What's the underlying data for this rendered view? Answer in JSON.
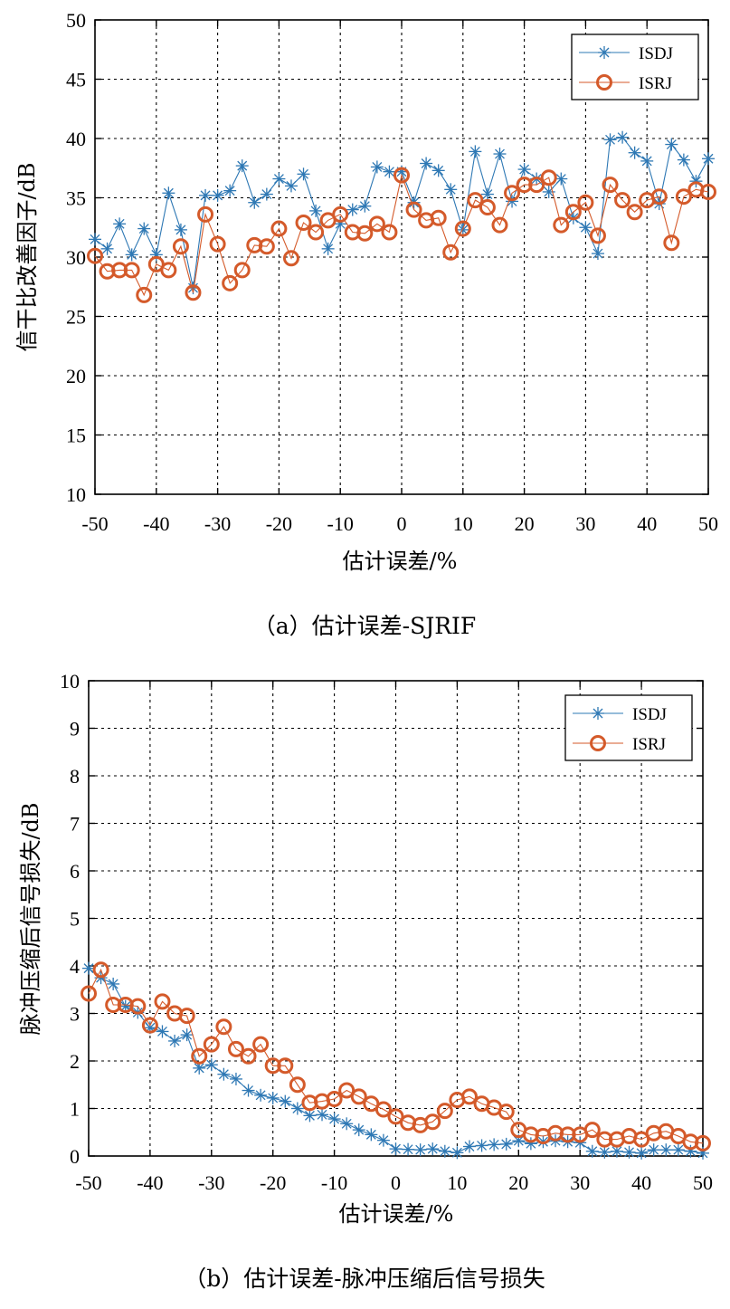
{
  "chart_data": [
    {
      "type": "line",
      "caption": "（a）估计误差-SJRIF",
      "xlabel": "估计误差/%",
      "ylabel": "信干比改善因子/dB",
      "xlim": [
        -50,
        50
      ],
      "ylim": [
        10,
        50
      ],
      "xticks": [
        -50,
        -40,
        -30,
        -20,
        -10,
        0,
        10,
        20,
        30,
        40,
        50
      ],
      "yticks": [
        10,
        15,
        20,
        25,
        30,
        35,
        40,
        45,
        50
      ],
      "grid": true,
      "legend_position": "top-right",
      "x": [
        -50,
        -48,
        -46,
        -44,
        -42,
        -40,
        -38,
        -36,
        -34,
        -32,
        -30,
        -28,
        -26,
        -24,
        -22,
        -20,
        -18,
        -16,
        -14,
        -12,
        -10,
        -8,
        -6,
        -4,
        -2,
        0,
        2,
        4,
        6,
        8,
        10,
        12,
        14,
        16,
        18,
        20,
        22,
        24,
        26,
        28,
        30,
        32,
        34,
        36,
        38,
        40,
        42,
        44,
        46,
        48,
        50
      ],
      "series": [
        {
          "name": "ISDJ",
          "color": "#2e78b4",
          "marker": "star",
          "values": [
            31.5,
            30.7,
            32.8,
            30.2,
            32.4,
            30.2,
            35.4,
            32.3,
            27.4,
            35.2,
            35.2,
            35.6,
            37.7,
            34.6,
            35.3,
            36.6,
            36.0,
            37.0,
            33.9,
            30.7,
            32.8,
            34.0,
            34.3,
            37.6,
            37.2,
            37.2,
            34.6,
            37.9,
            37.3,
            35.7,
            32.3,
            38.9,
            35.3,
            38.7,
            34.7,
            37.4,
            36.6,
            35.5,
            36.6,
            33.3,
            32.5,
            30.3,
            39.9,
            40.1,
            38.8,
            38.1,
            34.5,
            39.5,
            38.2,
            36.4,
            38.3
          ]
        },
        {
          "name": "ISRJ",
          "color": "#d45a2a",
          "marker": "circle",
          "values": [
            30.1,
            28.8,
            28.9,
            28.9,
            26.8,
            29.4,
            28.9,
            30.9,
            27.0,
            33.6,
            31.1,
            27.8,
            28.9,
            31.0,
            30.9,
            32.4,
            29.9,
            32.9,
            32.1,
            33.1,
            33.6,
            32.1,
            32.0,
            32.8,
            32.1,
            36.9,
            34.0,
            33.1,
            33.3,
            30.4,
            32.4,
            34.8,
            34.2,
            32.7,
            35.4,
            36.1,
            36.1,
            36.7,
            32.7,
            33.8,
            34.6,
            31.8,
            36.1,
            34.8,
            33.8,
            34.8,
            35.1,
            31.2,
            35.1,
            35.7,
            35.5
          ]
        }
      ]
    },
    {
      "type": "line",
      "caption": "（b）估计误差-脉冲压缩后信号损失",
      "xlabel": "估计误差/%",
      "ylabel": "脉冲压缩后信号损失/dB",
      "xlim": [
        -50,
        50
      ],
      "ylim": [
        0,
        10
      ],
      "xticks": [
        -50,
        -40,
        -30,
        -20,
        -10,
        0,
        10,
        20,
        30,
        40,
        50
      ],
      "yticks": [
        0,
        1,
        2,
        3,
        4,
        5,
        6,
        7,
        8,
        9,
        10
      ],
      "grid": true,
      "legend_position": "top-right",
      "x": [
        -50,
        -48,
        -46,
        -44,
        -42,
        -40,
        -38,
        -36,
        -34,
        -32,
        -30,
        -28,
        -26,
        -24,
        -22,
        -20,
        -18,
        -16,
        -14,
        -12,
        -10,
        -8,
        -6,
        -4,
        -2,
        0,
        2,
        4,
        6,
        8,
        10,
        12,
        14,
        16,
        18,
        20,
        22,
        24,
        26,
        28,
        30,
        32,
        34,
        36,
        38,
        40,
        42,
        44,
        46,
        48,
        50
      ],
      "series": [
        {
          "name": "ISDJ",
          "color": "#2e78b4",
          "marker": "star",
          "values": [
            3.95,
            3.75,
            3.62,
            3.15,
            3.02,
            2.7,
            2.62,
            2.42,
            2.55,
            1.85,
            1.92,
            1.72,
            1.62,
            1.38,
            1.28,
            1.22,
            1.15,
            1.0,
            0.85,
            0.87,
            0.78,
            0.68,
            0.55,
            0.45,
            0.33,
            0.15,
            0.14,
            0.13,
            0.15,
            0.1,
            0.07,
            0.2,
            0.22,
            0.24,
            0.25,
            0.32,
            0.26,
            0.3,
            0.32,
            0.3,
            0.28,
            0.1,
            0.08,
            0.1,
            0.08,
            0.06,
            0.13,
            0.13,
            0.13,
            0.1,
            0.06
          ]
        },
        {
          "name": "ISRJ",
          "color": "#d45a2a",
          "marker": "circle",
          "values": [
            3.42,
            3.92,
            3.18,
            3.18,
            3.15,
            2.75,
            3.25,
            3.0,
            2.95,
            2.1,
            2.35,
            2.72,
            2.25,
            2.1,
            2.35,
            1.9,
            1.9,
            1.5,
            1.12,
            1.15,
            1.2,
            1.38,
            1.25,
            1.1,
            0.98,
            0.83,
            0.7,
            0.65,
            0.72,
            0.95,
            1.18,
            1.25,
            1.1,
            1.02,
            0.93,
            0.55,
            0.45,
            0.42,
            0.48,
            0.45,
            0.45,
            0.55,
            0.35,
            0.35,
            0.42,
            0.35,
            0.48,
            0.52,
            0.42,
            0.3,
            0.27
          ]
        }
      ]
    }
  ]
}
